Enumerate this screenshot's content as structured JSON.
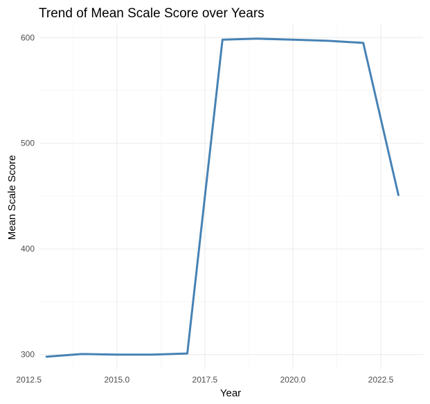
{
  "chart_data": {
    "type": "line",
    "title": "Trend of Mean Scale Score over Years",
    "xlabel": "Year",
    "ylabel": "Mean Scale Score",
    "xlim": [
      2012.8,
      2023.7
    ],
    "ylim": [
      286,
      612
    ],
    "x_ticks": [
      2012.5,
      2015.0,
      2017.5,
      2020.0,
      2022.5
    ],
    "x_tick_labels": [
      "2012.5",
      "2015.0",
      "2017.5",
      "2020.0",
      "2022.5"
    ],
    "y_ticks": [
      300,
      400,
      500,
      600
    ],
    "y_tick_labels": [
      "300",
      "400",
      "500",
      "600"
    ],
    "grid": true,
    "legend": "none",
    "line_color": "#4682b4",
    "series": [
      {
        "x": [
          2013,
          2014,
          2015,
          2016,
          2017,
          2018,
          2019,
          2020,
          2021,
          2022,
          2023
        ],
        "y": [
          298,
          300.5,
          300,
          300,
          301,
          598,
          599,
          598,
          597,
          595,
          451
        ]
      }
    ]
  }
}
